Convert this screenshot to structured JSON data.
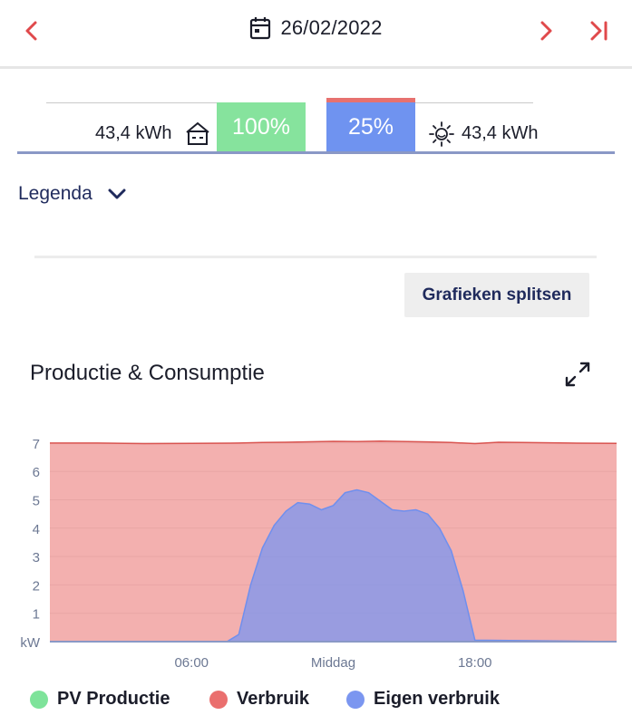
{
  "header": {
    "date": "26/02/2022",
    "prev_icon": "chevron-left-icon",
    "calendar_icon": "calendar-icon",
    "next_icon": "chevron-right-icon",
    "last_icon": "skip-to-end-icon",
    "accent_color": "#e0494b"
  },
  "summary": {
    "consumption_kwh": "43,4 kWh",
    "production_kwh": "43,4 kWh",
    "self_sufficiency_pct": "100%",
    "self_consumption_pct": "25%",
    "house_icon": "house-icon",
    "sun_icon": "sun-icon"
  },
  "legenda": {
    "label": "Legenda",
    "icon": "chevron-down-icon"
  },
  "split_button": {
    "label": "Grafieken splitsen"
  },
  "chart": {
    "title": "Productie & Consumptie",
    "expand_icon": "expand-icon"
  },
  "legend": [
    {
      "label": "PV Productie",
      "color": "#7ee39a"
    },
    {
      "label": "Verbruik",
      "color": "#ea6f6e"
    },
    {
      "label": "Eigen verbruik",
      "color": "#7b96f0"
    }
  ],
  "chart_data": {
    "type": "area",
    "title": "Productie & Consumptie",
    "xlabel": "",
    "ylabel": "kW",
    "x_ticks": [
      "06:00",
      "Middag",
      "18:00"
    ],
    "y_ticks": [
      "kW",
      "1",
      "2",
      "3",
      "4",
      "5",
      "6",
      "7"
    ],
    "ylim": [
      0,
      7.2
    ],
    "xlim_hours": [
      0,
      24
    ],
    "grid": true,
    "series": [
      {
        "name": "Verbruik",
        "color": "#ea6f6e",
        "x": [
          0,
          2,
          4,
          6,
          8,
          9,
          10,
          12,
          13,
          14,
          16,
          17,
          18,
          19,
          20,
          22,
          24
        ],
        "y": [
          7.0,
          7.0,
          6.98,
          6.99,
          7.0,
          7.02,
          7.03,
          7.06,
          7.05,
          7.07,
          7.04,
          7.02,
          6.98,
          7.03,
          7.02,
          7.0,
          6.99
        ]
      },
      {
        "name": "Eigen verbruik",
        "color": "#7b96f0",
        "x": [
          0,
          7.5,
          8.0,
          8.5,
          9.0,
          9.5,
          10.0,
          10.5,
          11.0,
          11.5,
          12.0,
          12.5,
          13.0,
          13.5,
          14.0,
          14.5,
          15.0,
          15.5,
          16.0,
          16.5,
          17.0,
          17.5,
          18.0,
          24
        ],
        "y": [
          0,
          0,
          0.25,
          2.0,
          3.3,
          4.1,
          4.6,
          4.9,
          4.85,
          4.65,
          4.8,
          5.25,
          5.35,
          5.25,
          4.95,
          4.65,
          4.6,
          4.65,
          4.5,
          4.0,
          3.2,
          1.8,
          0.05,
          0
        ]
      }
    ]
  }
}
